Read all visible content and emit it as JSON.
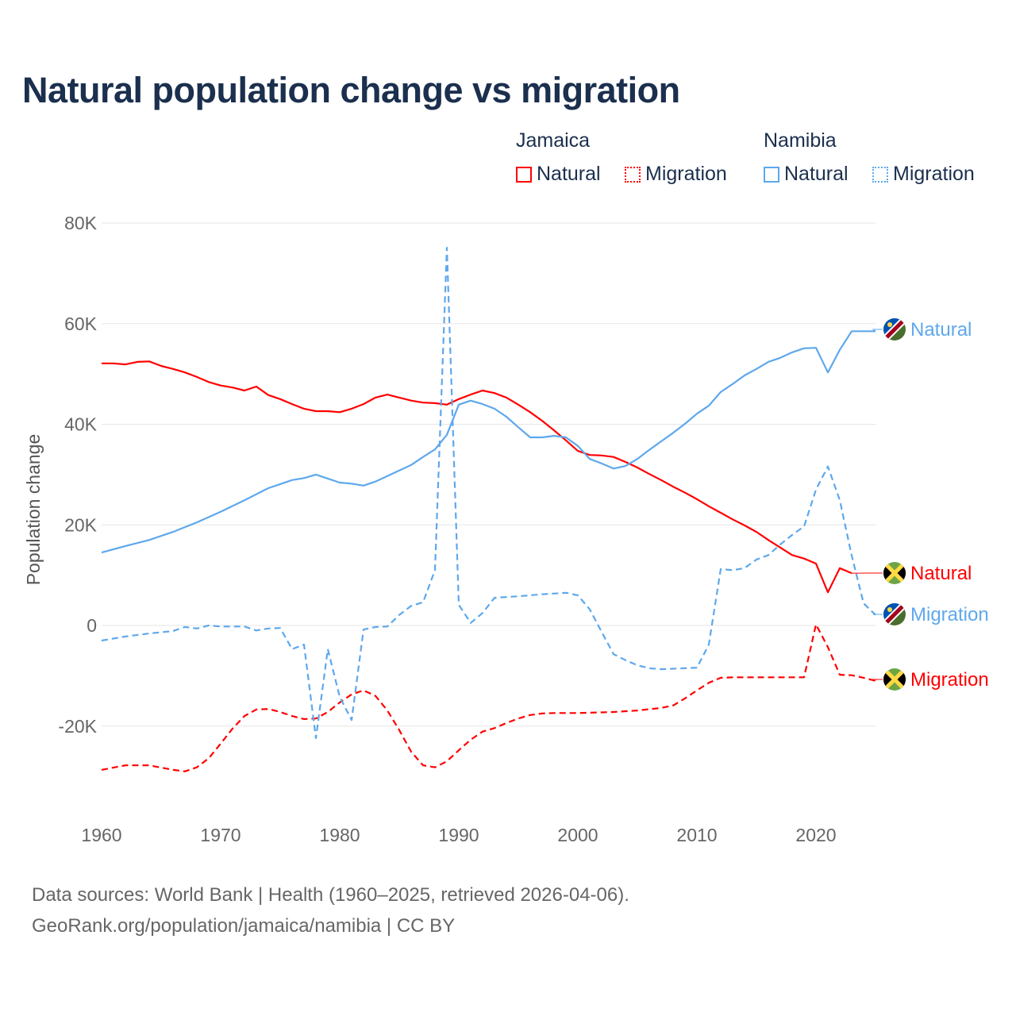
{
  "title": "Natural population change vs migration",
  "legend": {
    "groups": [
      {
        "name": "Jamaica",
        "items": [
          {
            "label": "Natural",
            "style": "solid",
            "color": "#ff0000"
          },
          {
            "label": "Migration",
            "style": "dotted",
            "color": "#ff0000"
          }
        ]
      },
      {
        "name": "Namibia",
        "items": [
          {
            "label": "Natural",
            "style": "solid",
            "color": "#5ea8ec"
          },
          {
            "label": "Migration",
            "style": "dotted",
            "color": "#5ea8ec"
          }
        ]
      }
    ]
  },
  "source": {
    "line1": "Data sources: World Bank | Health (1960–2025, retrieved 2026-04-06).",
    "line2": "GeoRank.org/population/jamaica/namibia | CC BY"
  },
  "chart_data": {
    "type": "line",
    "title": "Natural population change vs migration",
    "xlabel": "",
    "ylabel": "Population change",
    "xlim": [
      1960,
      2025
    ],
    "ylim": [
      -30000,
      85000
    ],
    "x_ticks": [
      1960,
      1970,
      1980,
      1990,
      2000,
      2010,
      2020
    ],
    "x_tick_labels": [
      "1960",
      "1970",
      "1980",
      "1990",
      "2000",
      "2010",
      "2020"
    ],
    "y_ticks": [
      -20000,
      0,
      20000,
      40000,
      60000,
      80000
    ],
    "y_tick_labels": [
      "-20K",
      "0",
      "20K",
      "40K",
      "60K",
      "80K"
    ],
    "grid": true,
    "legend_position": "top-right",
    "series": [
      {
        "name": "Jamaica Natural",
        "end_label": "Natural",
        "country": "Jamaica",
        "color": "#ff0000",
        "dash": false,
        "points": [
          [
            1960,
            52.1
          ],
          [
            1961,
            52.1
          ],
          [
            1962,
            51.9
          ],
          [
            1963,
            52.4
          ],
          [
            1964,
            52.5
          ],
          [
            1965,
            51.6
          ],
          [
            1966,
            51.0
          ],
          [
            1967,
            50.3
          ],
          [
            1968,
            49.4
          ],
          [
            1969,
            48.4
          ],
          [
            1970,
            47.7
          ],
          [
            1971,
            47.3
          ],
          [
            1972,
            46.7
          ],
          [
            1973,
            47.5
          ],
          [
            1974,
            45.8
          ],
          [
            1975,
            45.0
          ],
          [
            1976,
            44.0
          ],
          [
            1977,
            43.1
          ],
          [
            1978,
            42.6
          ],
          [
            1979,
            42.6
          ],
          [
            1980,
            42.4
          ],
          [
            1981,
            43.1
          ],
          [
            1982,
            44.0
          ],
          [
            1983,
            45.3
          ],
          [
            1984,
            45.9
          ],
          [
            1985,
            45.3
          ],
          [
            1986,
            44.7
          ],
          [
            1987,
            44.3
          ],
          [
            1988,
            44.2
          ],
          [
            1989,
            43.9
          ],
          [
            1990,
            45.0
          ],
          [
            1991,
            45.9
          ],
          [
            1992,
            46.7
          ],
          [
            1993,
            46.2
          ],
          [
            1994,
            45.3
          ],
          [
            1995,
            43.9
          ],
          [
            1996,
            42.4
          ],
          [
            1997,
            40.7
          ],
          [
            1998,
            38.8
          ],
          [
            1999,
            36.8
          ],
          [
            2000,
            34.7
          ],
          [
            2001,
            33.9
          ],
          [
            2002,
            33.8
          ],
          [
            2003,
            33.5
          ],
          [
            2004,
            32.5
          ],
          [
            2005,
            31.4
          ],
          [
            2006,
            30.1
          ],
          [
            2007,
            28.9
          ],
          [
            2008,
            27.6
          ],
          [
            2009,
            26.4
          ],
          [
            2010,
            25.1
          ],
          [
            2011,
            23.7
          ],
          [
            2012,
            22.4
          ],
          [
            2013,
            21.1
          ],
          [
            2014,
            19.9
          ],
          [
            2015,
            18.6
          ],
          [
            2016,
            17.0
          ],
          [
            2017,
            15.5
          ],
          [
            2018,
            14.0
          ],
          [
            2019,
            13.3
          ],
          [
            2020,
            12.3
          ],
          [
            2021,
            6.6
          ],
          [
            2022,
            11.4
          ],
          [
            2023,
            10.4
          ]
        ]
      },
      {
        "name": "Jamaica Migration",
        "end_label": "Migration",
        "country": "Jamaica",
        "color": "#ff0000",
        "dash": true,
        "points": [
          [
            1960,
            -28.7
          ],
          [
            1962,
            -27.8
          ],
          [
            1964,
            -27.8
          ],
          [
            1966,
            -28.7
          ],
          [
            1967,
            -29.0
          ],
          [
            1968,
            -28.2
          ],
          [
            1969,
            -26.4
          ],
          [
            1970,
            -23.5
          ],
          [
            1971,
            -20.5
          ],
          [
            1972,
            -18.0
          ],
          [
            1973,
            -16.7
          ],
          [
            1974,
            -16.6
          ],
          [
            1975,
            -17.2
          ],
          [
            1976,
            -18.0
          ],
          [
            1977,
            -18.6
          ],
          [
            1978,
            -18.5
          ],
          [
            1979,
            -17.2
          ],
          [
            1980,
            -15.3
          ],
          [
            1981,
            -13.7
          ],
          [
            1982,
            -12.9
          ],
          [
            1983,
            -14.0
          ],
          [
            1984,
            -16.9
          ],
          [
            1985,
            -20.8
          ],
          [
            1986,
            -25.1
          ],
          [
            1987,
            -27.8
          ],
          [
            1988,
            -28.2
          ],
          [
            1989,
            -27.0
          ],
          [
            1990,
            -24.8
          ],
          [
            1991,
            -22.7
          ],
          [
            1992,
            -21.1
          ],
          [
            1993,
            -20.4
          ],
          [
            1994,
            -19.4
          ],
          [
            1995,
            -18.5
          ],
          [
            1996,
            -17.8
          ],
          [
            1997,
            -17.5
          ],
          [
            1998,
            -17.4
          ],
          [
            2000,
            -17.4
          ],
          [
            2003,
            -17.2
          ],
          [
            2005,
            -16.9
          ],
          [
            2007,
            -16.4
          ],
          [
            2008,
            -15.9
          ],
          [
            2009,
            -14.5
          ],
          [
            2010,
            -12.9
          ],
          [
            2011,
            -11.4
          ],
          [
            2012,
            -10.4
          ],
          [
            2013,
            -10.3
          ],
          [
            2019,
            -10.3
          ],
          [
            2020,
            0.2
          ],
          [
            2021,
            -4.3
          ],
          [
            2022,
            -9.8
          ],
          [
            2023,
            -9.9
          ],
          [
            2024,
            -10.4
          ],
          [
            2025,
            -11.0
          ]
        ]
      },
      {
        "name": "Namibia Natural",
        "end_label": "Natural",
        "country": "Namibia",
        "color": "#5ea8ec",
        "dash": false,
        "points": [
          [
            1960,
            14.5
          ],
          [
            1962,
            15.8
          ],
          [
            1964,
            17.0
          ],
          [
            1966,
            18.6
          ],
          [
            1968,
            20.5
          ],
          [
            1970,
            22.6
          ],
          [
            1972,
            24.9
          ],
          [
            1974,
            27.3
          ],
          [
            1975,
            28.1
          ],
          [
            1976,
            28.9
          ],
          [
            1977,
            29.3
          ],
          [
            1978,
            30.0
          ],
          [
            1979,
            29.2
          ],
          [
            1980,
            28.4
          ],
          [
            1981,
            28.2
          ],
          [
            1982,
            27.8
          ],
          [
            1983,
            28.6
          ],
          [
            1984,
            29.7
          ],
          [
            1985,
            30.8
          ],
          [
            1986,
            31.9
          ],
          [
            1987,
            33.5
          ],
          [
            1988,
            35.0
          ],
          [
            1989,
            37.9
          ],
          [
            1990,
            43.9
          ],
          [
            1991,
            44.7
          ],
          [
            1992,
            44.0
          ],
          [
            1993,
            43.1
          ],
          [
            1994,
            41.5
          ],
          [
            1995,
            39.4
          ],
          [
            1996,
            37.4
          ],
          [
            1997,
            37.4
          ],
          [
            1998,
            37.7
          ],
          [
            1999,
            37.4
          ],
          [
            2000,
            35.7
          ],
          [
            2001,
            33.1
          ],
          [
            2002,
            32.2
          ],
          [
            2003,
            31.2
          ],
          [
            2004,
            31.7
          ],
          [
            2005,
            33.1
          ],
          [
            2006,
            34.9
          ],
          [
            2007,
            36.6
          ],
          [
            2008,
            38.3
          ],
          [
            2009,
            40.1
          ],
          [
            2010,
            42.1
          ],
          [
            2011,
            43.7
          ],
          [
            2012,
            46.4
          ],
          [
            2013,
            48.0
          ],
          [
            2014,
            49.7
          ],
          [
            2015,
            51.0
          ],
          [
            2016,
            52.4
          ],
          [
            2017,
            53.2
          ],
          [
            2018,
            54.3
          ],
          [
            2019,
            55.1
          ],
          [
            2020,
            55.2
          ],
          [
            2021,
            50.3
          ],
          [
            2022,
            54.8
          ],
          [
            2023,
            58.5
          ],
          [
            2024,
            58.5
          ],
          [
            2025,
            58.5
          ]
        ]
      },
      {
        "name": "Namibia Migration",
        "end_label": "Migration",
        "country": "Namibia",
        "color": "#5ea8ec",
        "dash": true,
        "points": [
          [
            1960,
            -3.0
          ],
          [
            1962,
            -2.2
          ],
          [
            1964,
            -1.6
          ],
          [
            1966,
            -1.1
          ],
          [
            1967,
            -0.3
          ],
          [
            1968,
            -0.6
          ],
          [
            1969,
            0.0
          ],
          [
            1970,
            -0.2
          ],
          [
            1972,
            -0.2
          ],
          [
            1973,
            -1.0
          ],
          [
            1974,
            -0.6
          ],
          [
            1975,
            -0.5
          ],
          [
            1976,
            -4.7
          ],
          [
            1977,
            -3.8
          ],
          [
            1978,
            -22.4
          ],
          [
            1979,
            -4.7
          ],
          [
            1980,
            -14.2
          ],
          [
            1981,
            -18.8
          ],
          [
            1982,
            -0.8
          ],
          [
            1983,
            -0.3
          ],
          [
            1984,
            -0.2
          ],
          [
            1985,
            2.1
          ],
          [
            1986,
            3.9
          ],
          [
            1987,
            4.6
          ],
          [
            1988,
            11.0
          ],
          [
            1989,
            75.1
          ],
          [
            1990,
            4.1
          ],
          [
            1991,
            0.5
          ],
          [
            1992,
            2.5
          ],
          [
            1993,
            5.5
          ],
          [
            1995,
            5.8
          ],
          [
            1997,
            6.2
          ],
          [
            1999,
            6.5
          ],
          [
            2000,
            6.0
          ],
          [
            2001,
            3.2
          ],
          [
            2002,
            -1.3
          ],
          [
            2003,
            -5.7
          ],
          [
            2004,
            -6.9
          ],
          [
            2005,
            -7.9
          ],
          [
            2006,
            -8.5
          ],
          [
            2007,
            -8.7
          ],
          [
            2010,
            -8.4
          ],
          [
            2011,
            -3.8
          ],
          [
            2012,
            11.2
          ],
          [
            2013,
            11.0
          ],
          [
            2014,
            11.4
          ],
          [
            2015,
            13.1
          ],
          [
            2016,
            14.0
          ],
          [
            2017,
            16.1
          ],
          [
            2018,
            18.0
          ],
          [
            2019,
            19.7
          ],
          [
            2020,
            27.0
          ],
          [
            2021,
            31.6
          ],
          [
            2022,
            24.9
          ],
          [
            2023,
            13.9
          ],
          [
            2024,
            4.4
          ],
          [
            2025,
            2.1
          ]
        ]
      }
    ],
    "value_unit": "thousands"
  }
}
